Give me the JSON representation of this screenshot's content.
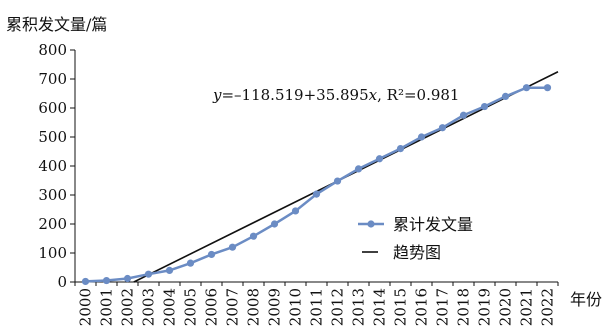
{
  "chart_data": {
    "type": "line",
    "ylabel": "累积发文量/篇",
    "xlabel": "年份",
    "ylim": [
      0,
      800
    ],
    "yticks": [
      0,
      100,
      200,
      300,
      400,
      500,
      600,
      700,
      800
    ],
    "x": [
      "2000",
      "2001",
      "2002",
      "2003",
      "2004",
      "2005",
      "2006",
      "2007",
      "2008",
      "2009",
      "2010",
      "2011",
      "2012",
      "2013",
      "2014",
      "2015",
      "2016",
      "2017",
      "2018",
      "2019",
      "2020",
      "2021",
      "2022"
    ],
    "series": [
      {
        "name": "累计发文量",
        "color": "#6b8cc4",
        "values": [
          2,
          5,
          12,
          27,
          40,
          65,
          95,
          120,
          158,
          200,
          245,
          303,
          348,
          390,
          425,
          460,
          500,
          532,
          575,
          605,
          640,
          670,
          670
        ]
      }
    ],
    "trendline": {
      "name": "趋势图",
      "color": "#111111",
      "intercept": -118.519,
      "slope": 35.895
    },
    "annotation": {
      "prefix": "y",
      "rest": "=–118.519+35.895",
      "var": "x",
      "r2": ", R²=0.981"
    },
    "legend_position": "right-center",
    "grid": false
  }
}
